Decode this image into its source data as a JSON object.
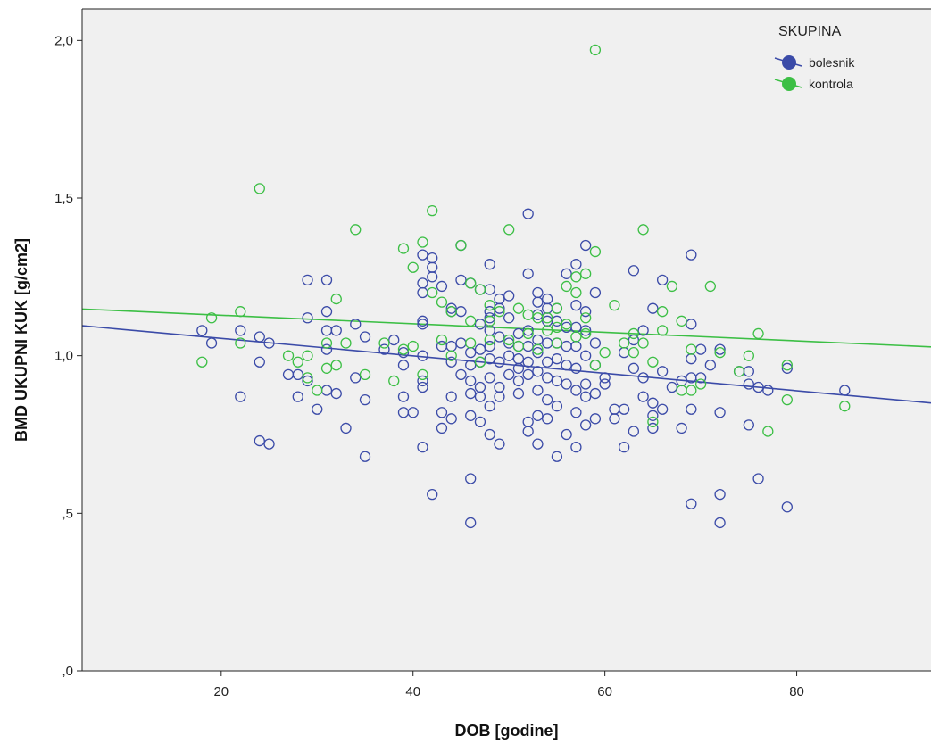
{
  "chart_data": {
    "type": "scatter",
    "xlabel": "DOB [godine]",
    "ylabel": "BMD UKUPNI KUK [g/cm2]",
    "xlim": [
      5.5,
      94
    ],
    "ylim": [
      0,
      2.1
    ],
    "x_ticks": [
      20,
      40,
      60,
      80
    ],
    "x_tick_labels": [
      "20",
      "40",
      "60",
      "80"
    ],
    "y_ticks": [
      0,
      0.5,
      1.0,
      1.5,
      2.0
    ],
    "y_tick_labels": [
      ",0",
      ",5",
      "1,0",
      "1,5",
      "2,0"
    ],
    "grid": false,
    "plot_background": "#f0f0f0",
    "legend": {
      "title": "SKUPINA",
      "placement": "top-right"
    },
    "series": [
      {
        "name": "bolesnik",
        "color": "#3b4ba8",
        "marker": "open-circle",
        "fit_line": {
          "x": [
            5.5,
            94
          ],
          "y": [
            1.095,
            0.85
          ]
        },
        "points": [
          [
            18,
            1.08
          ],
          [
            19,
            1.04
          ],
          [
            22,
            0.87
          ],
          [
            22,
            1.08
          ],
          [
            24,
            1.06
          ],
          [
            24,
            0.98
          ],
          [
            24,
            0.73
          ],
          [
            25,
            0.72
          ],
          [
            25,
            1.04
          ],
          [
            27,
            0.94
          ],
          [
            28,
            0.94
          ],
          [
            28,
            0.87
          ],
          [
            29,
            0.92
          ],
          [
            29,
            1.12
          ],
          [
            29,
            1.24
          ],
          [
            30,
            0.83
          ],
          [
            31,
            1.02
          ],
          [
            31,
            1.14
          ],
          [
            31,
            1.24
          ],
          [
            31,
            1.08
          ],
          [
            31,
            0.89
          ],
          [
            32,
            0.88
          ],
          [
            32,
            1.08
          ],
          [
            33,
            0.77
          ],
          [
            34,
            1.1
          ],
          [
            34,
            0.93
          ],
          [
            35,
            1.06
          ],
          [
            35,
            0.86
          ],
          [
            35,
            0.68
          ],
          [
            37,
            1.02
          ],
          [
            38,
            1.05
          ],
          [
            39,
            0.97
          ],
          [
            39,
            1.01
          ],
          [
            39,
            0.87
          ],
          [
            39,
            0.82
          ],
          [
            40,
            0.82
          ],
          [
            41,
            1.32
          ],
          [
            41,
            1.23
          ],
          [
            41,
            1.2
          ],
          [
            41,
            1.11
          ],
          [
            41,
            1.1
          ],
          [
            41,
            1.0
          ],
          [
            41,
            0.92
          ],
          [
            41,
            0.9
          ],
          [
            41,
            0.71
          ],
          [
            42,
            1.31
          ],
          [
            42,
            1.28
          ],
          [
            42,
            1.25
          ],
          [
            42,
            0.56
          ],
          [
            43,
            1.22
          ],
          [
            43,
            1.03
          ],
          [
            43,
            0.82
          ],
          [
            43,
            0.77
          ],
          [
            44,
            1.15
          ],
          [
            44,
            1.14
          ],
          [
            44,
            1.03
          ],
          [
            44,
            0.98
          ],
          [
            44,
            0.87
          ],
          [
            44,
            0.8
          ],
          [
            45,
            1.35
          ],
          [
            45,
            1.24
          ],
          [
            45,
            1.14
          ],
          [
            45,
            1.04
          ],
          [
            45,
            0.94
          ],
          [
            46,
            1.23
          ],
          [
            46,
            1.01
          ],
          [
            46,
            0.97
          ],
          [
            46,
            0.92
          ],
          [
            46,
            0.88
          ],
          [
            46,
            0.81
          ],
          [
            46,
            0.61
          ],
          [
            46,
            0.47
          ],
          [
            47,
            1.21
          ],
          [
            47,
            1.1
          ],
          [
            47,
            1.02
          ],
          [
            47,
            0.98
          ],
          [
            47,
            0.9
          ],
          [
            47,
            0.87
          ],
          [
            47,
            0.79
          ],
          [
            48,
            1.29
          ],
          [
            48,
            1.21
          ],
          [
            48,
            1.14
          ],
          [
            48,
            1.12
          ],
          [
            48,
            1.08
          ],
          [
            48,
            1.03
          ],
          [
            48,
            0.99
          ],
          [
            48,
            0.93
          ],
          [
            48,
            0.84
          ],
          [
            48,
            0.75
          ],
          [
            49,
            1.18
          ],
          [
            49,
            1.15
          ],
          [
            49,
            1.06
          ],
          [
            49,
            0.98
          ],
          [
            49,
            0.9
          ],
          [
            49,
            0.87
          ],
          [
            49,
            0.72
          ],
          [
            50,
            1.19
          ],
          [
            50,
            1.12
          ],
          [
            50,
            1.04
          ],
          [
            50,
            1.0
          ],
          [
            50,
            0.94
          ],
          [
            51,
            1.07
          ],
          [
            51,
            1.03
          ],
          [
            51,
            0.99
          ],
          [
            51,
            0.96
          ],
          [
            51,
            0.92
          ],
          [
            51,
            0.88
          ],
          [
            52,
            1.45
          ],
          [
            52,
            1.26
          ],
          [
            52,
            1.08
          ],
          [
            52,
            1.03
          ],
          [
            52,
            0.98
          ],
          [
            52,
            0.94
          ],
          [
            52,
            0.79
          ],
          [
            52,
            0.76
          ],
          [
            53,
            1.2
          ],
          [
            53,
            1.17
          ],
          [
            53,
            1.13
          ],
          [
            53,
            1.05
          ],
          [
            53,
            1.01
          ],
          [
            53,
            0.95
          ],
          [
            53,
            0.89
          ],
          [
            53,
            0.81
          ],
          [
            53,
            0.72
          ],
          [
            54,
            1.18
          ],
          [
            54,
            1.15
          ],
          [
            54,
            1.11
          ],
          [
            54,
            1.04
          ],
          [
            54,
            0.98
          ],
          [
            54,
            0.93
          ],
          [
            54,
            0.86
          ],
          [
            54,
            0.8
          ],
          [
            55,
            1.15
          ],
          [
            55,
            1.11
          ],
          [
            55,
            1.04
          ],
          [
            55,
            0.99
          ],
          [
            55,
            0.92
          ],
          [
            55,
            0.84
          ],
          [
            55,
            0.68
          ],
          [
            56,
            1.26
          ],
          [
            56,
            1.09
          ],
          [
            56,
            1.03
          ],
          [
            56,
            0.97
          ],
          [
            56,
            0.91
          ],
          [
            56,
            0.75
          ],
          [
            57,
            1.29
          ],
          [
            57,
            1.16
          ],
          [
            57,
            1.09
          ],
          [
            57,
            1.03
          ],
          [
            57,
            0.96
          ],
          [
            57,
            0.89
          ],
          [
            57,
            0.82
          ],
          [
            57,
            0.71
          ],
          [
            58,
            1.35
          ],
          [
            58,
            1.14
          ],
          [
            58,
            1.08
          ],
          [
            58,
            1.0
          ],
          [
            58,
            0.91
          ],
          [
            58,
            0.87
          ],
          [
            58,
            0.78
          ],
          [
            59,
            1.2
          ],
          [
            59,
            1.04
          ],
          [
            59,
            0.97
          ],
          [
            59,
            0.88
          ],
          [
            59,
            0.8
          ],
          [
            60,
            0.93
          ],
          [
            60,
            0.91
          ],
          [
            61,
            0.83
          ],
          [
            61,
            0.8
          ],
          [
            62,
            1.01
          ],
          [
            62,
            0.83
          ],
          [
            62,
            0.71
          ],
          [
            63,
            1.27
          ],
          [
            63,
            1.05
          ],
          [
            63,
            0.96
          ],
          [
            63,
            0.76
          ],
          [
            64,
            1.08
          ],
          [
            64,
            0.93
          ],
          [
            64,
            0.87
          ],
          [
            65,
            1.15
          ],
          [
            65,
            0.85
          ],
          [
            65,
            0.81
          ],
          [
            65,
            0.77
          ],
          [
            66,
            1.24
          ],
          [
            66,
            0.95
          ],
          [
            66,
            0.83
          ],
          [
            67,
            0.9
          ],
          [
            68,
            0.92
          ],
          [
            68,
            0.77
          ],
          [
            69,
            1.32
          ],
          [
            69,
            1.1
          ],
          [
            69,
            0.99
          ],
          [
            69,
            0.93
          ],
          [
            69,
            0.83
          ],
          [
            69,
            0.53
          ],
          [
            70,
            1.02
          ],
          [
            70,
            0.93
          ],
          [
            71,
            0.97
          ],
          [
            72,
            1.02
          ],
          [
            72,
            0.82
          ],
          [
            72,
            0.56
          ],
          [
            72,
            0.47
          ],
          [
            74,
            0.95
          ],
          [
            75,
            0.95
          ],
          [
            75,
            0.91
          ],
          [
            75,
            0.78
          ],
          [
            76,
            0.9
          ],
          [
            76,
            0.61
          ],
          [
            77,
            0.89
          ],
          [
            79,
            0.96
          ],
          [
            79,
            0.52
          ],
          [
            85,
            0.89
          ]
        ]
      },
      {
        "name": "kontrola",
        "color": "#3cbf45",
        "marker": "open-circle",
        "fit_line": {
          "x": [
            5.5,
            94
          ],
          "y": [
            1.148,
            1.028
          ]
        },
        "points": [
          [
            18,
            0.98
          ],
          [
            19,
            1.12
          ],
          [
            22,
            1.14
          ],
          [
            22,
            1.04
          ],
          [
            24,
            1.53
          ],
          [
            27,
            1.0
          ],
          [
            28,
            0.98
          ],
          [
            29,
            0.93
          ],
          [
            29,
            1.0
          ],
          [
            30,
            0.89
          ],
          [
            31,
            0.96
          ],
          [
            31,
            1.04
          ],
          [
            32,
            1.18
          ],
          [
            32,
            0.97
          ],
          [
            33,
            1.04
          ],
          [
            34,
            1.4
          ],
          [
            35,
            0.94
          ],
          [
            37,
            1.04
          ],
          [
            38,
            0.92
          ],
          [
            39,
            1.34
          ],
          [
            39,
            1.02
          ],
          [
            40,
            1.28
          ],
          [
            40,
            1.03
          ],
          [
            41,
            1.36
          ],
          [
            41,
            0.94
          ],
          [
            42,
            1.46
          ],
          [
            42,
            1.2
          ],
          [
            43,
            1.17
          ],
          [
            43,
            1.05
          ],
          [
            44,
            1.14
          ],
          [
            44,
            1.0
          ],
          [
            45,
            1.35
          ],
          [
            46,
            1.23
          ],
          [
            46,
            1.11
          ],
          [
            46,
            1.04
          ],
          [
            47,
            0.98
          ],
          [
            47,
            1.21
          ],
          [
            48,
            1.16
          ],
          [
            48,
            1.11
          ],
          [
            48,
            1.05
          ],
          [
            49,
            1.14
          ],
          [
            50,
            1.4
          ],
          [
            50,
            1.05
          ],
          [
            51,
            1.15
          ],
          [
            51,
            1.03
          ],
          [
            52,
            1.13
          ],
          [
            52,
            1.07
          ],
          [
            53,
            1.12
          ],
          [
            53,
            1.02
          ],
          [
            54,
            1.12
          ],
          [
            54,
            1.08
          ],
          [
            55,
            1.15
          ],
          [
            55,
            1.09
          ],
          [
            55,
            1.04
          ],
          [
            56,
            1.22
          ],
          [
            56,
            1.1
          ],
          [
            57,
            1.25
          ],
          [
            57,
            1.2
          ],
          [
            57,
            1.06
          ],
          [
            58,
            1.26
          ],
          [
            58,
            1.12
          ],
          [
            58,
            1.07
          ],
          [
            59,
            1.97
          ],
          [
            59,
            1.33
          ],
          [
            59,
            0.97
          ],
          [
            60,
            1.01
          ],
          [
            61,
            1.16
          ],
          [
            62,
            1.04
          ],
          [
            63,
            1.07
          ],
          [
            63,
            1.01
          ],
          [
            64,
            1.4
          ],
          [
            64,
            1.04
          ],
          [
            65,
            0.98
          ],
          [
            65,
            0.79
          ],
          [
            66,
            1.14
          ],
          [
            66,
            1.08
          ],
          [
            67,
            1.22
          ],
          [
            68,
            1.11
          ],
          [
            68,
            0.89
          ],
          [
            69,
            1.02
          ],
          [
            69,
            0.89
          ],
          [
            70,
            0.91
          ],
          [
            71,
            1.22
          ],
          [
            72,
            1.01
          ],
          [
            74,
            0.95
          ],
          [
            75,
            1.0
          ],
          [
            76,
            1.07
          ],
          [
            77,
            0.76
          ],
          [
            79,
            0.97
          ],
          [
            79,
            0.86
          ],
          [
            85,
            0.84
          ]
        ]
      }
    ]
  }
}
